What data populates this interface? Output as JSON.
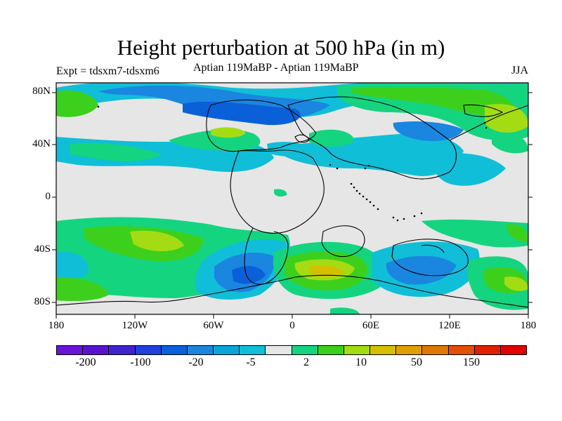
{
  "title": "Height perturbation at 500 hPa (in m)",
  "left_label": "Expt = tdsxm7-tdsxm6",
  "center_label": "Aptian  119MaBP - Aptian  119MaBP",
  "right_label": "JJA",
  "lat_ticks": [
    "80N",
    "40N",
    "0",
    "40S",
    "80S"
  ],
  "lon_ticks": [
    "180",
    "120W",
    "60W",
    "0",
    "60E",
    "120E",
    "180"
  ],
  "colorbar": {
    "colors": [
      "#6a14d8",
      "#5a12cc",
      "#3e24cc",
      "#2040dc",
      "#0a60d8",
      "#1a86e0",
      "#0aa4d6",
      "#10bed8",
      "#e6e6e6",
      "#14d480",
      "#3cd01c",
      "#a4dc14",
      "#d4c000",
      "#e0a000",
      "#e07800",
      "#e05000",
      "#e02000",
      "#e00000"
    ],
    "labels": [
      "-200",
      "-100",
      "-20",
      "-5",
      "2",
      "10",
      "50",
      "150"
    ]
  },
  "field_colors": {
    "neg_weak": "#10bed8",
    "neg_mid": "#0aa4d6",
    "neg_strong": "#1a86e0",
    "neg_deep": "#0a60d8",
    "neutral": "#e6e6e6",
    "pos_weak": "#14d480",
    "pos_mid": "#3cd01c",
    "pos_strong": "#a4dc14",
    "pos_deep": "#d4c000",
    "pos_core": "#e0a000"
  }
}
